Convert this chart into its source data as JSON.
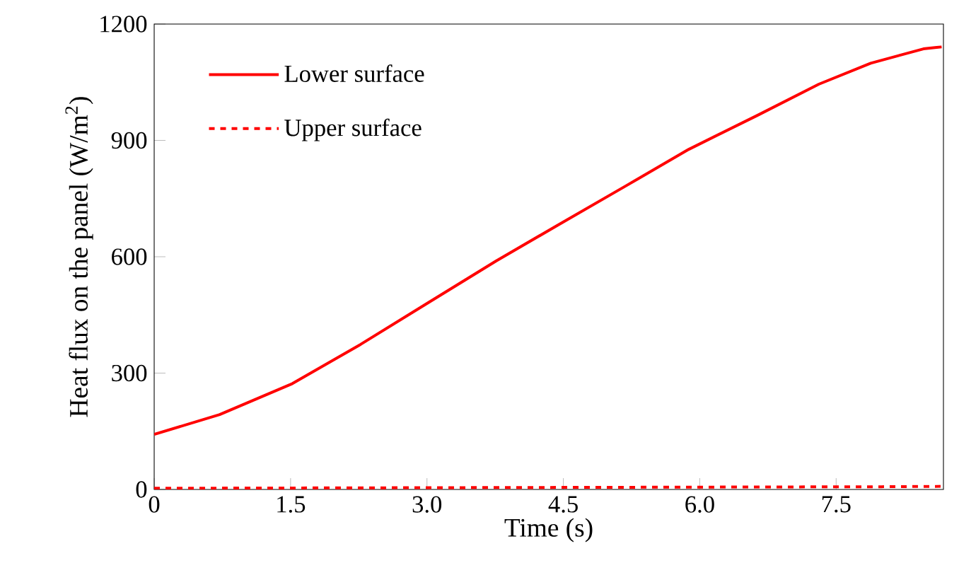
{
  "chart_data": {
    "type": "line",
    "xlabel": "Time   (s)",
    "ylabel": "Heat flux on the panel  (W/m$^{2}$)",
    "xlim": [
      0,
      8.68
    ],
    "ylim": [
      0,
      1200
    ],
    "xticks": [
      0,
      1.5,
      {
        "value": 3,
        "label": "3.0"
      },
      4.5,
      {
        "value": 6,
        "label": "6.0"
      },
      7.5
    ],
    "yticks": [
      0,
      300,
      600,
      900,
      1200
    ],
    "legend": "top left",
    "grid": false,
    "series": [
      {
        "name": "Lower surface",
        "color": "#ff0000",
        "line_style": "solid",
        "x": [
          0,
          0.72,
          1.52,
          2.27,
          3.01,
          3.76,
          4.45,
          5.19,
          5.88,
          6.63,
          7.31,
          7.88,
          8.46,
          8.66
        ],
        "values": [
          142,
          193,
          273,
          374,
          481,
          589,
          683,
          783,
          877,
          964,
          1045,
          1099,
          1136,
          1141
        ]
      },
      {
        "name": "Upper surface",
        "color": "#ff0000",
        "line_style": "dashed",
        "x": [
          0,
          2,
          4,
          6,
          8,
          8.68
        ],
        "values": [
          3,
          4,
          5,
          6,
          7,
          8
        ]
      }
    ]
  }
}
